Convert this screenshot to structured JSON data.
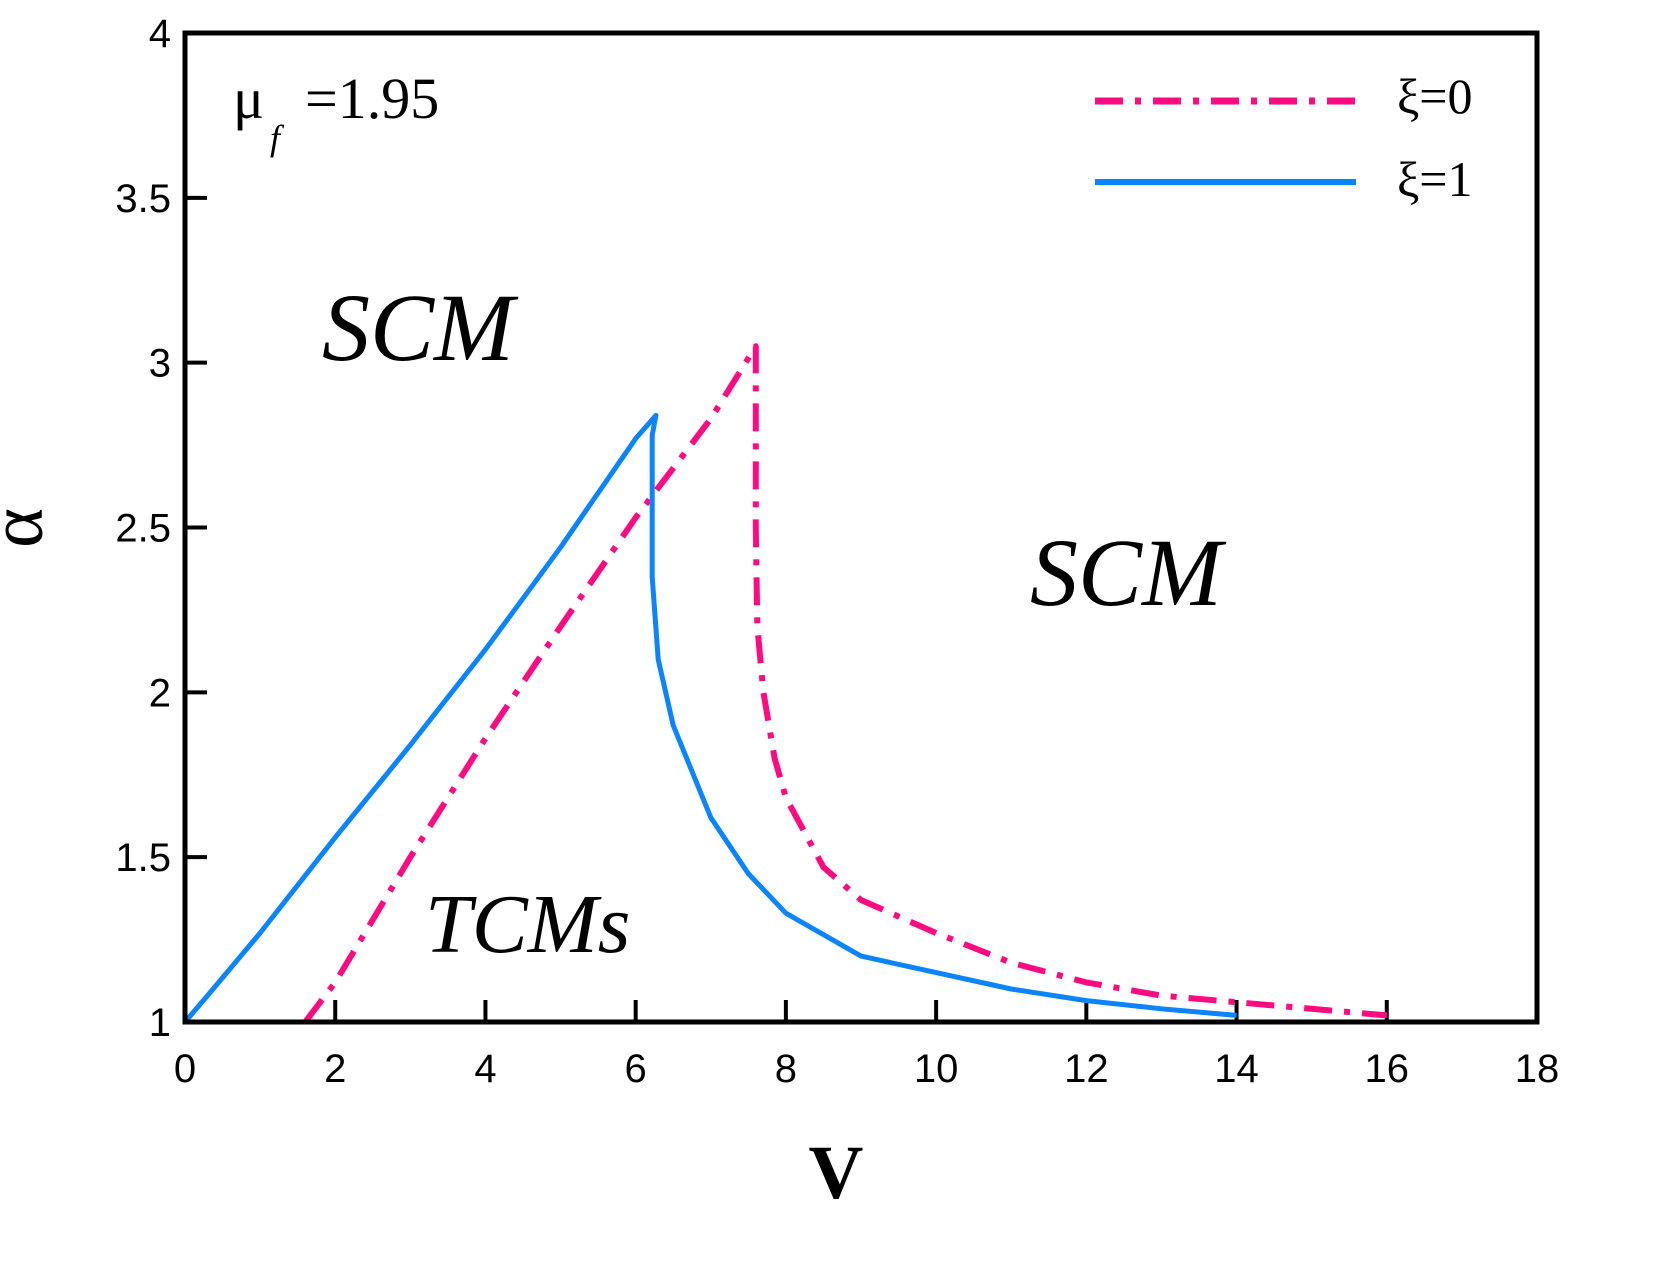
{
  "chart_data": {
    "type": "line",
    "title": "",
    "xlabel": "V",
    "ylabel": "α",
    "xlim": [
      0,
      18
    ],
    "ylim": [
      1,
      4
    ],
    "xticks": [
      0,
      2,
      4,
      6,
      8,
      10,
      12,
      14,
      16,
      18
    ],
    "yticks": [
      1,
      1.5,
      2,
      2.5,
      3,
      3.5,
      4
    ],
    "xtick_labels": [
      "0",
      "2",
      "4",
      "6",
      "8",
      "10",
      "12",
      "14",
      "16",
      "18"
    ],
    "ytick_labels": [
      "1",
      "1.5",
      "2",
      "2.5",
      "3",
      "3.5",
      "4"
    ],
    "grid": false,
    "legend_position": "upper right",
    "series": [
      {
        "name": "ξ=0",
        "color": "#ff0a80",
        "style": "dash-dot",
        "x": [
          1.6,
          2,
          3,
          4,
          5,
          6,
          7,
          7.6,
          7.6,
          7.62,
          7.7,
          7.85,
          8,
          8.5,
          9,
          10,
          11,
          12,
          13,
          14,
          15,
          16
        ],
        "y": [
          1.0,
          1.12,
          1.5,
          1.86,
          2.2,
          2.53,
          2.83,
          3.05,
          2.5,
          2.2,
          2.0,
          1.8,
          1.68,
          1.47,
          1.37,
          1.27,
          1.18,
          1.12,
          1.08,
          1.06,
          1.04,
          1.02
        ]
      },
      {
        "name": "ξ=1",
        "color": "#0a84ff",
        "style": "solid",
        "x": [
          0,
          0.3,
          1,
          2,
          3,
          4,
          5,
          6,
          6.27,
          6.22,
          6.22,
          6.3,
          6.5,
          7,
          7.5,
          8,
          9,
          10,
          11,
          12,
          13,
          14
        ],
        "y": [
          1.0,
          1.08,
          1.27,
          1.56,
          1.84,
          2.13,
          2.44,
          2.77,
          2.84,
          2.78,
          2.35,
          2.1,
          1.9,
          1.62,
          1.45,
          1.33,
          1.2,
          1.15,
          1.1,
          1.065,
          1.04,
          1.02
        ]
      }
    ],
    "annotations": [
      {
        "text": "SCM",
        "x": 1.8,
        "y": 3.08
      },
      {
        "text": "SCM",
        "x": 11.3,
        "y": 2.3
      },
      {
        "text": "TCMs",
        "x": 3.2,
        "y": 1.3
      }
    ],
    "parameter_label": {
      "symbol": "μ",
      "subscript": "f",
      "value": "=1.95"
    }
  },
  "labels": {
    "xlabel": "V",
    "ylabel": "α",
    "param_symbol": "μ",
    "param_sub": "f",
    "param_value": "=1.95",
    "region_scm_left": "SCM",
    "region_scm_right": "SCM",
    "region_tcms": "TCMs",
    "legend_0": "ξ=0",
    "legend_1": "ξ=1"
  }
}
